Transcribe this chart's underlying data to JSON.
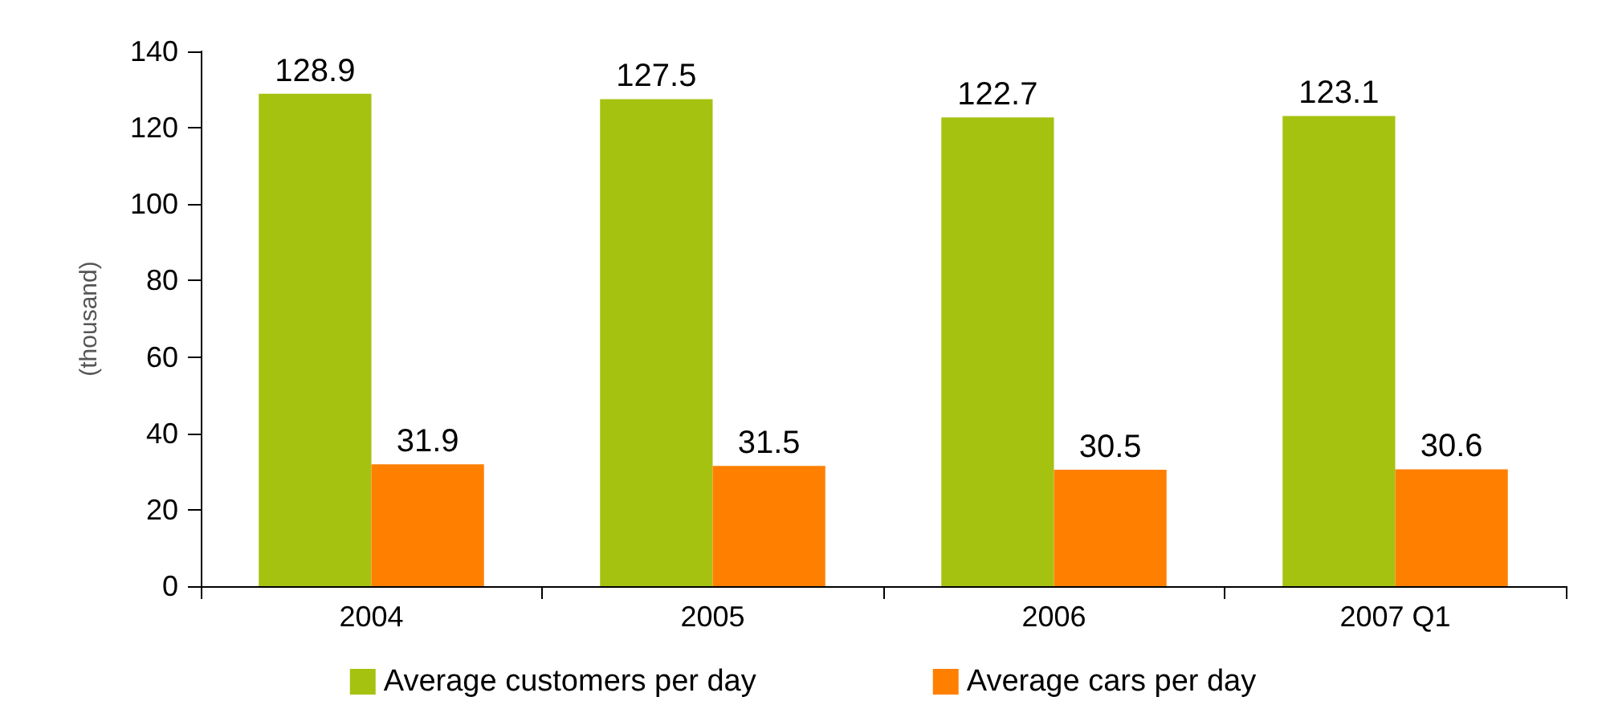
{
  "chart_data": {
    "type": "bar",
    "ylabel": "(thousand)",
    "categories": [
      "2004",
      "2005",
      "2006",
      "2007 Q1"
    ],
    "series": [
      {
        "name": "Average customers per day",
        "color": "#a5c211",
        "values": [
          128.9,
          127.5,
          122.7,
          123.1
        ]
      },
      {
        "name": "Average cars per day",
        "color": "#ff8000",
        "values": [
          31.9,
          31.5,
          30.5,
          30.6
        ]
      }
    ],
    "ylim": [
      0,
      140
    ],
    "yticks": [
      0,
      20,
      40,
      60,
      80,
      100,
      120,
      140
    ],
    "grid": false,
    "legend": "bottom",
    "data_labels": true
  }
}
